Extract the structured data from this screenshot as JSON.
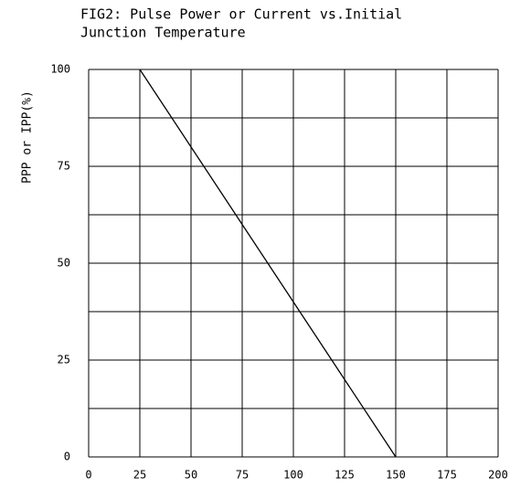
{
  "chart_data": {
    "type": "line",
    "title": [
      "FIG2: Pulse Power or Current vs.Initial",
      "Junction Temperature"
    ],
    "y_label": "PPP or IPP(%)",
    "x": [
      25,
      150
    ],
    "series": [
      {
        "color": "#000000",
        "values": [
          100,
          0
        ]
      }
    ],
    "xlim": [
      0,
      200
    ],
    "xticks": [
      0,
      25,
      50,
      75,
      100,
      125,
      150,
      175,
      200
    ],
    "ylim": [
      0,
      100
    ],
    "yticks": [
      0,
      25,
      50,
      75,
      100
    ],
    "minor_yticks": [
      12.5,
      37.5,
      62.5,
      87.5
    ],
    "grid": true
  }
}
